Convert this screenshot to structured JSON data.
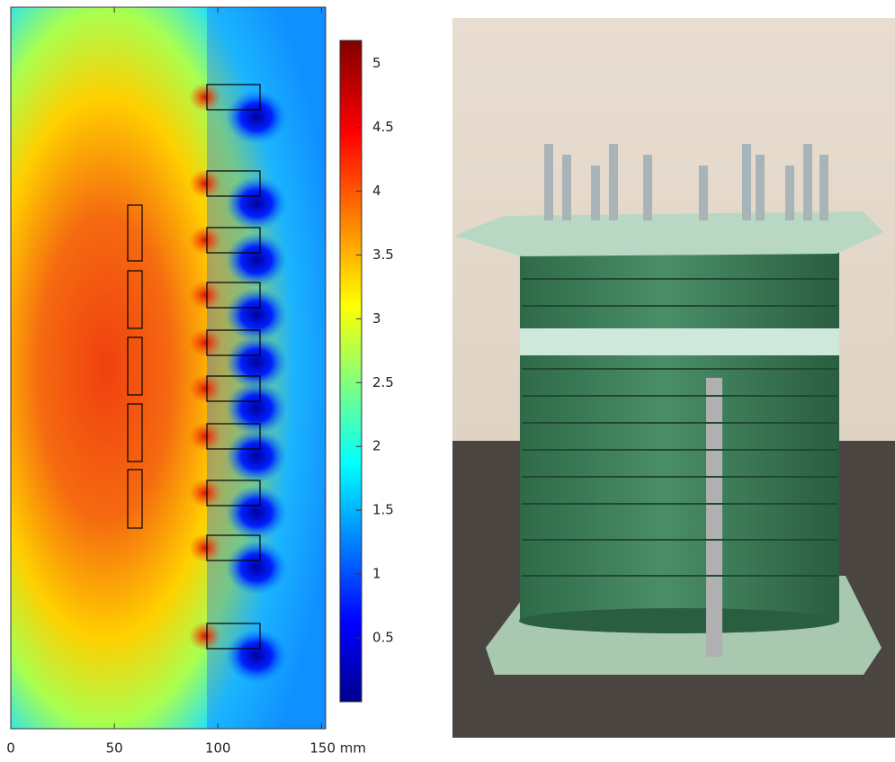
{
  "field_plot": {
    "x_axis": {
      "lim": [
        0,
        152
      ],
      "ticks": [
        0,
        50,
        100,
        {
          "value": 150,
          "label": "150 mm"
        }
      ]
    },
    "colorbar": {
      "lim": [
        0,
        5.18
      ],
      "ticks": [
        0.5,
        1,
        1.5,
        2,
        2.5,
        3,
        3.5,
        4,
        4.5,
        5
      ]
    }
  }
}
